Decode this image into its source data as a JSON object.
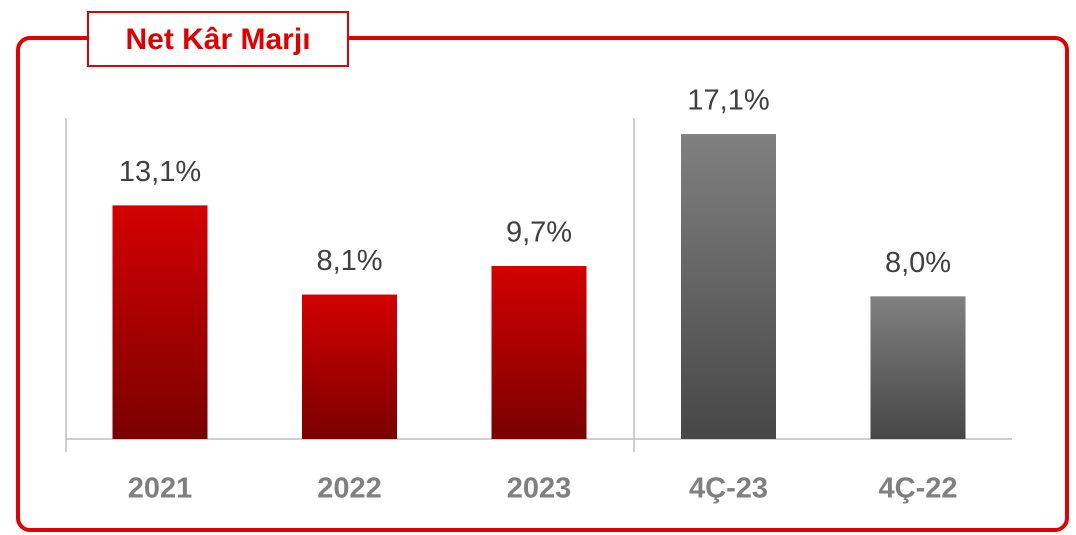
{
  "chart_data": {
    "type": "bar",
    "title": "Net Kâr Marjı",
    "categories": [
      "2021",
      "2022",
      "2023",
      "4Ç-23",
      "4Ç-22"
    ],
    "values": [
      13.1,
      8.1,
      9.7,
      17.1,
      8.0
    ],
    "value_labels": [
      "13,1%",
      "8,1%",
      "9,7%",
      "17,1%",
      "8,0%"
    ],
    "colors": [
      {
        "top": "#d40000",
        "bottom": "#7a0000"
      },
      {
        "top": "#d40000",
        "bottom": "#7a0000"
      },
      {
        "top": "#d40000",
        "bottom": "#7a0000"
      },
      {
        "top": "#808080",
        "bottom": "#474747"
      },
      {
        "top": "#808080",
        "bottom": "#474747"
      }
    ],
    "ylim": [
      0,
      18
    ]
  }
}
